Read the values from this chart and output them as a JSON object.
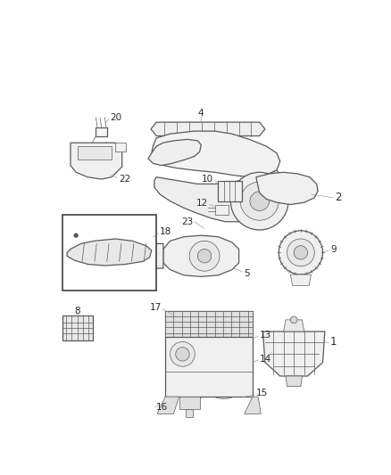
{
  "background": "#ffffff",
  "figsize": [
    4.38,
    5.33
  ],
  "dpi": 100,
  "line_color": "#5a5a5a",
  "label_color": "#2a2a2a",
  "font_size": 7.5,
  "lw_main": 0.9,
  "lw_thin": 0.5,
  "lw_leader": 0.4
}
